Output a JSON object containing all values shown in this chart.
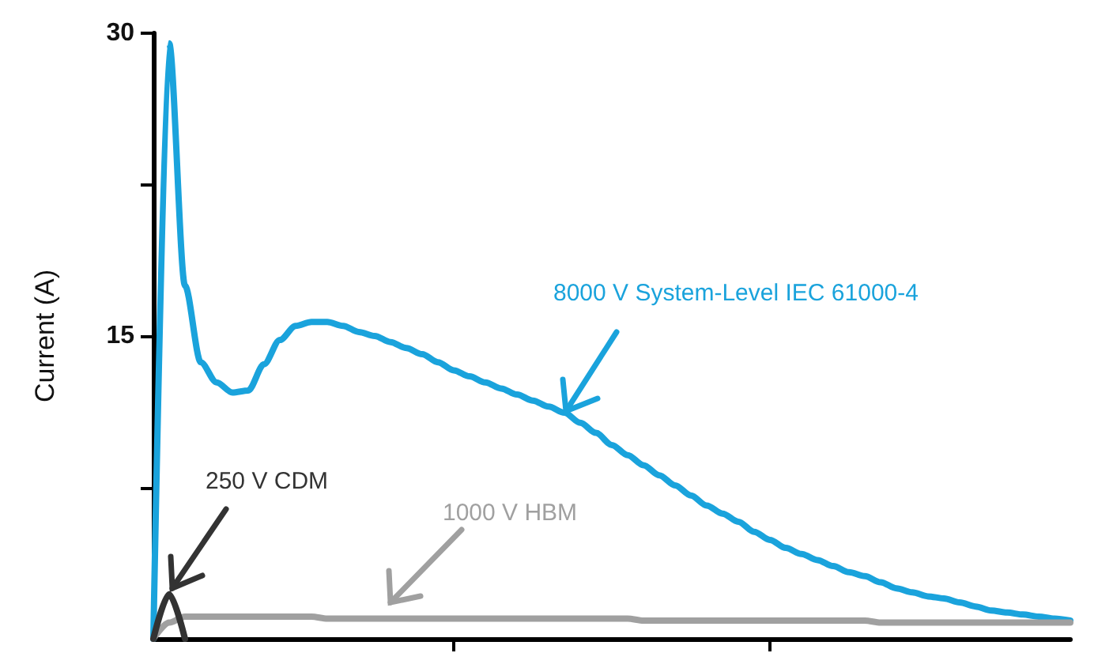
{
  "chart_data": {
    "type": "line",
    "ylabel": "Current (A)",
    "categories": [
      null,
      null,
      null,
      null,
      null,
      null,
      null,
      null,
      null,
      null,
      null,
      null,
      null,
      null,
      null,
      null,
      null,
      null,
      null,
      null,
      null,
      null,
      null,
      null,
      null,
      null,
      null,
      null,
      null,
      null,
      null,
      null,
      null,
      null,
      null,
      null,
      null,
      null,
      null,
      null,
      null,
      null,
      null,
      null,
      null,
      null,
      null,
      null,
      null,
      null,
      null,
      null,
      null,
      null,
      null,
      null,
      null,
      null,
      null
    ],
    "series": [
      {
        "name": "8000 V System-Level IEC 61000-4",
        "color": "#1aa3dc",
        "values": [
          0,
          29.5,
          17.5,
          13.7,
          12.7,
          12.2,
          12.3,
          13.6,
          14.8,
          15.5,
          15.7,
          15.7,
          15.5,
          15.2,
          15.0,
          14.7,
          14.4,
          14.1,
          13.7,
          13.3,
          13.0,
          12.7,
          12.4,
          12.1,
          11.8,
          11.5,
          11.2,
          10.7,
          10.2,
          9.6,
          9.1,
          8.6,
          8.1,
          7.6,
          7.1,
          6.6,
          6.2,
          5.8,
          5.3,
          4.9,
          4.5,
          4.2,
          3.9,
          3.6,
          3.3,
          3.1,
          2.8,
          2.5,
          2.3,
          2.1,
          2.0,
          1.8,
          1.6,
          1.4,
          1.3,
          1.2,
          1.1,
          1.0,
          0.9
        ]
      },
      {
        "name": "1000 V HBM",
        "color": "#a0a0a0",
        "values": [
          0,
          0.8,
          1.1,
          1.1,
          1.1,
          1.1,
          1.1,
          1.1,
          1.1,
          1.1,
          1.1,
          1.0,
          1.0,
          1.0,
          1.0,
          1.0,
          1.0,
          1.0,
          1.0,
          1.0,
          1.0,
          1.0,
          1.0,
          1.0,
          1.0,
          1.0,
          1.0,
          1.0,
          1.0,
          1.0,
          1.0,
          0.9,
          0.9,
          0.9,
          0.9,
          0.9,
          0.9,
          0.9,
          0.9,
          0.9,
          0.9,
          0.9,
          0.9,
          0.9,
          0.9,
          0.9,
          0.8,
          0.8,
          0.8,
          0.8,
          0.8,
          0.8,
          0.8,
          0.8,
          0.8,
          0.8,
          0.8,
          0.8,
          0.8
        ]
      },
      {
        "name": "250 V CDM",
        "color": "#333333",
        "values": [
          0,
          2.2,
          0,
          null,
          null,
          null,
          null,
          null,
          null,
          null,
          null,
          null,
          null,
          null,
          null,
          null,
          null,
          null,
          null,
          null,
          null,
          null,
          null,
          null,
          null,
          null,
          null,
          null,
          null,
          null,
          null,
          null,
          null,
          null,
          null,
          null,
          null,
          null,
          null,
          null,
          null,
          null,
          null,
          null,
          null,
          null,
          null,
          null,
          null,
          null,
          null,
          null,
          null,
          null,
          null,
          null,
          null,
          null,
          null
        ]
      }
    ],
    "ylim": [
      0,
      30
    ],
    "yticks": [
      {
        "value": 7.5,
        "label": null
      },
      15,
      {
        "value": 22.5,
        "label": null
      },
      30
    ],
    "grid": false,
    "legend": false,
    "marker": "none",
    "line_style": "solid"
  }
}
